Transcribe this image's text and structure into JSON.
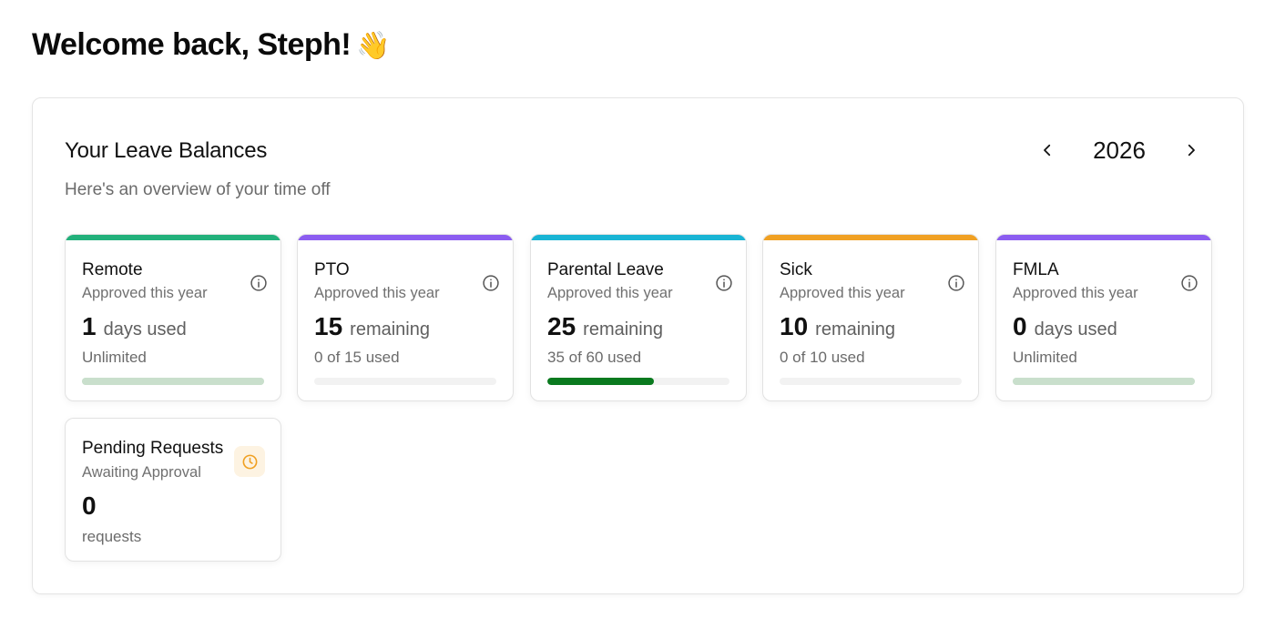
{
  "header": {
    "welcome": "Welcome back, Steph!",
    "wave": "👋"
  },
  "panel": {
    "title": "Your Leave Balances",
    "subtitle": "Here's an overview of your time off",
    "year": "2026"
  },
  "balances": [
    {
      "title": "Remote",
      "subtitle": "Approved this year",
      "value": "1",
      "unit": "days used",
      "detail": "Unlimited",
      "accent": "#21b07a",
      "progress": 1.0,
      "fill_color": "#c9dfcc",
      "track_color": "#c9dfcc"
    },
    {
      "title": "PTO",
      "subtitle": "Approved this year",
      "value": "15",
      "unit": "remaining",
      "detail": "0 of 15 used",
      "accent": "#8b5cf0",
      "progress": 0.0,
      "fill_color": "#0a7a1f",
      "track_color": "#f2f2f2"
    },
    {
      "title": "Parental Leave",
      "subtitle": "Approved this year",
      "value": "25",
      "unit": "remaining",
      "detail": "35 of 60 used",
      "accent": "#18b4d4",
      "progress": 0.5833,
      "fill_color": "#0a7a1f",
      "track_color": "#f2f2f2"
    },
    {
      "title": "Sick",
      "subtitle": "Approved this year",
      "value": "10",
      "unit": "remaining",
      "detail": "0 of 10 used",
      "accent": "#f0a022",
      "progress": 0.0,
      "fill_color": "#0a7a1f",
      "track_color": "#f2f2f2"
    },
    {
      "title": "FMLA",
      "subtitle": "Approved this year",
      "value": "0",
      "unit": "days used",
      "detail": "Unlimited",
      "accent": "#8b5cf0",
      "progress": 1.0,
      "fill_color": "#c9dfcc",
      "track_color": "#c9dfcc"
    }
  ],
  "pending": {
    "title": "Pending Requests",
    "subtitle": "Awaiting Approval",
    "value": "0",
    "detail": "requests",
    "icon": "clock-icon",
    "icon_color": "#f0a022"
  }
}
